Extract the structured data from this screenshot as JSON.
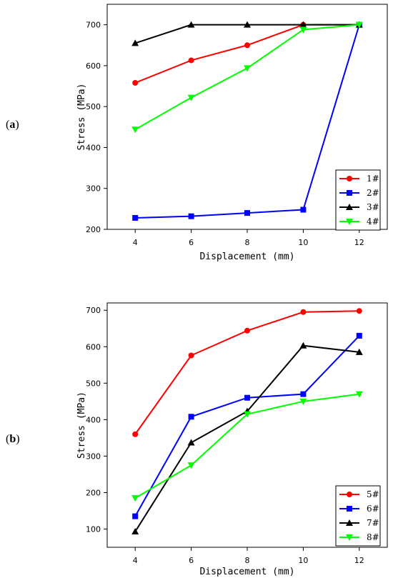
{
  "chart_data": [
    {
      "type": "line",
      "panel_label": "a",
      "x": [
        4,
        6,
        8,
        10,
        12
      ],
      "xlim": [
        3,
        13
      ],
      "ylim": [
        200,
        750
      ],
      "xticks": [
        4,
        6,
        8,
        10,
        12
      ],
      "yticks": [
        200,
        300,
        400,
        500,
        600,
        700
      ],
      "xlabel": "Displacement (mm)",
      "ylabel": "Stress (MPa)",
      "legend_position": "bottom-right",
      "series": [
        {
          "name": "1#",
          "color": "#ff0000",
          "marker": "circle",
          "values": [
            558,
            613,
            650,
            700,
            700
          ]
        },
        {
          "name": "2#",
          "color": "#0000ff",
          "marker": "square",
          "values": [
            228,
            232,
            240,
            248,
            700
          ]
        },
        {
          "name": "3#",
          "color": "#000000",
          "marker": "triangle-up",
          "values": [
            655,
            700,
            700,
            700,
            700
          ]
        },
        {
          "name": "4#",
          "color": "#00ff00",
          "marker": "triangle-down",
          "values": [
            444,
            522,
            594,
            688,
            700
          ]
        }
      ]
    },
    {
      "type": "line",
      "panel_label": "b",
      "x": [
        4,
        6,
        8,
        10,
        12
      ],
      "xlim": [
        3,
        13
      ],
      "ylim": [
        50,
        720
      ],
      "xticks": [
        4,
        6,
        8,
        10,
        12
      ],
      "yticks": [
        100,
        200,
        300,
        400,
        500,
        600,
        700
      ],
      "xlabel": "Displacement (mm)",
      "ylabel": "Stress (MPa)",
      "legend_position": "bottom-right",
      "series": [
        {
          "name": "5#",
          "color": "#ff0000",
          "marker": "circle",
          "values": [
            360,
            576,
            644,
            695,
            698
          ]
        },
        {
          "name": "6#",
          "color": "#0000ff",
          "marker": "square",
          "values": [
            135,
            408,
            460,
            470,
            630
          ]
        },
        {
          "name": "7#",
          "color": "#000000",
          "marker": "triangle-up",
          "values": [
            93,
            337,
            423,
            603,
            585
          ]
        },
        {
          "name": "8#",
          "color": "#00ff00",
          "marker": "triangle-down",
          "values": [
            185,
            275,
            415,
            450,
            470
          ]
        }
      ]
    }
  ]
}
